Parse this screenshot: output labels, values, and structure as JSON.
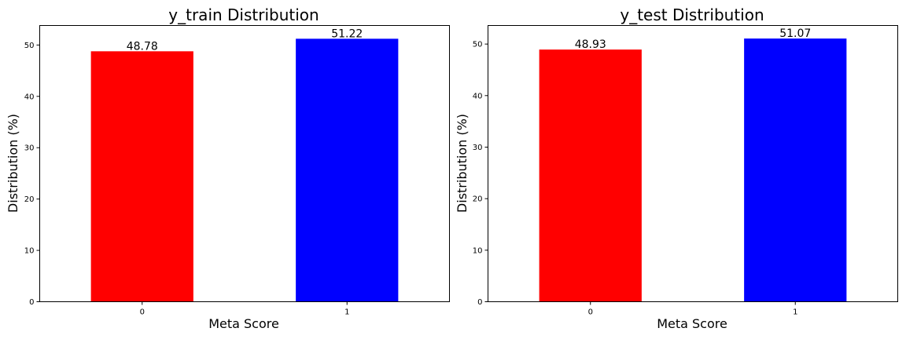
{
  "chart_data": [
    {
      "type": "bar",
      "title": "y_train Distribution",
      "xlabel": "Meta Score",
      "ylabel": "Distribution (%)",
      "categories": [
        "0",
        "1"
      ],
      "values": [
        48.78,
        51.22
      ],
      "value_labels": [
        "48.78",
        "51.22"
      ],
      "colors": [
        "#ff0000",
        "#0000ff"
      ],
      "ylim": [
        0,
        53.8
      ],
      "yticks": [
        0,
        10,
        20,
        30,
        40,
        50
      ],
      "ytick_labels": [
        "0",
        "10",
        "20",
        "30",
        "40",
        "50"
      ],
      "grid": false,
      "legend": false
    },
    {
      "type": "bar",
      "title": "y_test Distribution",
      "xlabel": "Meta Score",
      "ylabel": "Distribution (%)",
      "categories": [
        "0",
        "1"
      ],
      "values": [
        48.93,
        51.07
      ],
      "value_labels": [
        "48.93",
        "51.07"
      ],
      "colors": [
        "#ff0000",
        "#0000ff"
      ],
      "ylim": [
        0,
        53.6
      ],
      "yticks": [
        0,
        10,
        20,
        30,
        40,
        50
      ],
      "ytick_labels": [
        "0",
        "10",
        "20",
        "30",
        "40",
        "50"
      ],
      "grid": false,
      "legend": false
    }
  ]
}
